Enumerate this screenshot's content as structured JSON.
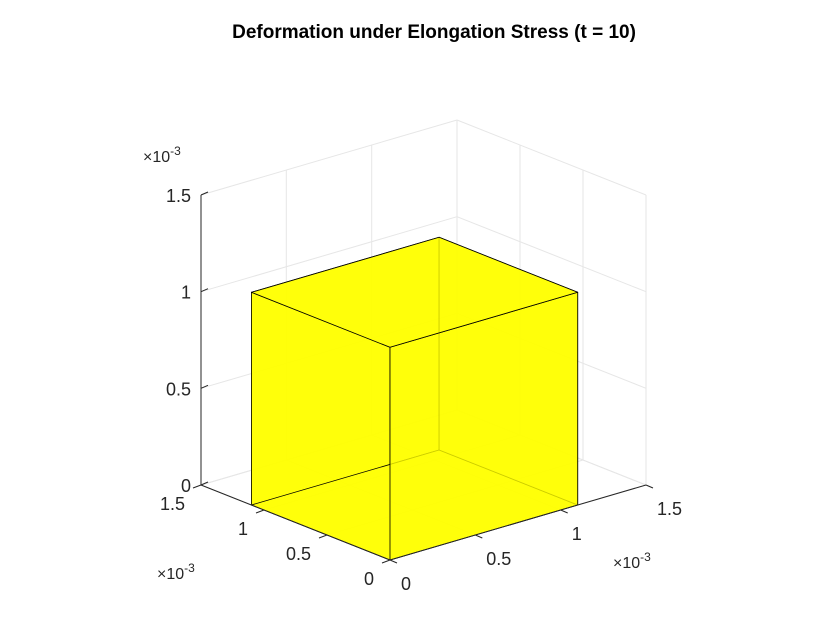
{
  "chart_data": {
    "type": "3d-surface",
    "title": "Deformation under Elongation Stress (t = 10)",
    "xlabel": "",
    "ylabel": "",
    "zlabel": "",
    "exponent_label": "×10",
    "exponent_power": "-3",
    "axes": {
      "x": {
        "lim": [
          0,
          1.5
        ],
        "ticks": [
          0,
          0.5,
          1,
          1.5
        ],
        "tick_labels": [
          "0",
          "0.5",
          "1",
          "1.5"
        ]
      },
      "y": {
        "lim": [
          0,
          1.5
        ],
        "ticks": [
          0,
          0.5,
          1,
          1.5
        ],
        "tick_labels": [
          "0",
          "0.5",
          "1",
          "1.5"
        ]
      },
      "z": {
        "lim": [
          0,
          1.5
        ],
        "ticks": [
          0,
          0.5,
          1,
          1.5
        ],
        "tick_labels": [
          "0",
          "0.5",
          "1",
          "1.5"
        ]
      }
    },
    "scale": 0.001,
    "grid": true,
    "box": {
      "min": [
        0,
        0,
        0
      ],
      "max": [
        1.1,
        1.1,
        1.1
      ],
      "face_color": "#ffff00",
      "face_alpha": 0.8,
      "edge_color": "#000000"
    }
  }
}
